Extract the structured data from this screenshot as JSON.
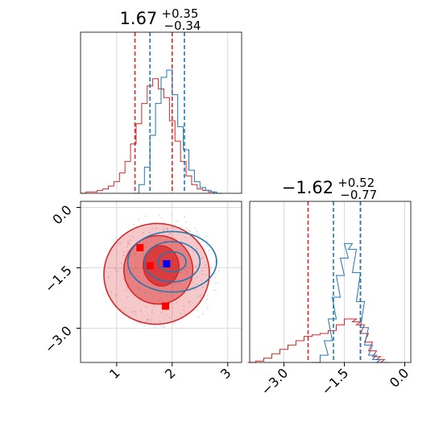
{
  "chart_data": [
    {
      "type": "histogram",
      "panel": "marginal-x",
      "title_main": "1.67",
      "title_sup": "+0.35",
      "title_sub": "−0.34",
      "xlim": [
        0.35,
        3.25
      ],
      "gridlines_x": [
        1,
        2,
        3
      ],
      "series": [
        {
          "color": "#d62728",
          "quantile_lines": [
            1.33,
            2.0
          ],
          "bins": [
            [
              0.4,
              0.0
            ],
            [
              0.5,
              0.01
            ],
            [
              0.6,
              0.01
            ],
            [
              0.7,
              0.02
            ],
            [
              0.8,
              0.03
            ],
            [
              0.9,
              0.05
            ],
            [
              1.0,
              0.08
            ],
            [
              1.1,
              0.14
            ],
            [
              1.2,
              0.22
            ],
            [
              1.3,
              0.34
            ],
            [
              1.4,
              0.48
            ],
            [
              1.5,
              0.62
            ],
            [
              1.6,
              0.74
            ],
            [
              1.7,
              0.79
            ],
            [
              1.8,
              0.72
            ],
            [
              1.9,
              0.66
            ],
            [
              2.0,
              0.5
            ],
            [
              2.1,
              0.36
            ],
            [
              2.2,
              0.22
            ],
            [
              2.3,
              0.12
            ],
            [
              2.4,
              0.06
            ],
            [
              2.5,
              0.03
            ],
            [
              2.6,
              0.02
            ],
            [
              2.7,
              0.01
            ],
            [
              2.8,
              0.0
            ]
          ]
        },
        {
          "color": "#1f77b4",
          "quantile_lines": [
            1.6,
            2.22
          ],
          "bins": [
            [
              1.35,
              0.0
            ],
            [
              1.45,
              0.06
            ],
            [
              1.55,
              0.18
            ],
            [
              1.65,
              0.4
            ],
            [
              1.75,
              0.62
            ],
            [
              1.85,
              0.8
            ],
            [
              1.95,
              0.85
            ],
            [
              2.05,
              0.68
            ],
            [
              2.15,
              0.46
            ],
            [
              2.25,
              0.3
            ],
            [
              2.35,
              0.16
            ],
            [
              2.45,
              0.08
            ],
            [
              2.55,
              0.04
            ],
            [
              2.65,
              0.02
            ],
            [
              2.75,
              0.01
            ],
            [
              2.85,
              0.0
            ]
          ]
        }
      ]
    },
    {
      "type": "contour",
      "panel": "joint",
      "xlim": [
        0.35,
        3.25
      ],
      "ylim": [
        -3.85,
        0.15
      ],
      "gridlines_x": [
        1,
        2,
        3
      ],
      "gridlines_y": [
        0.0,
        -1.5,
        -3.0
      ],
      "xticks": [
        "1",
        "2",
        "3"
      ],
      "yticks": [
        "0.0",
        "−1.5",
        "−3.0"
      ],
      "red_levels": [
        {
          "cx": 1.72,
          "cy": -1.65,
          "rx": 0.95,
          "ry": 1.25,
          "opacity": 0.25
        },
        {
          "cx": 1.75,
          "cy": -1.55,
          "rx": 0.62,
          "ry": 0.85,
          "opacity": 0.45
        },
        {
          "cx": 1.8,
          "cy": -1.45,
          "rx": 0.32,
          "ry": 0.5,
          "opacity": 0.75
        }
      ],
      "blue_levels": [
        {
          "cx": 2.0,
          "cy": -1.35,
          "rx": 0.8,
          "ry": 0.75
        },
        {
          "cx": 2.0,
          "cy": -1.35,
          "rx": 0.5,
          "ry": 0.5
        },
        {
          "cx": 2.0,
          "cy": -1.35,
          "rx": 0.25,
          "ry": 0.25
        }
      ],
      "markers": [
        {
          "x": 1.42,
          "y": -1.0,
          "color": "#ff0000"
        },
        {
          "x": 1.6,
          "y": -1.45,
          "color": "#ff0000"
        },
        {
          "x": 1.88,
          "y": -2.45,
          "color": "#ff0000"
        },
        {
          "x": 1.9,
          "y": -1.4,
          "color": "#0000ff"
        }
      ]
    },
    {
      "type": "histogram",
      "panel": "marginal-y",
      "title_main": "−1.62",
      "title_sup": "+0.52",
      "title_sub": "−0.77",
      "xlim": [
        -3.85,
        0.15
      ],
      "gridlines_x": [
        -3.0,
        -1.5,
        0.0
      ],
      "xticks": [
        "−3.0",
        "−1.5",
        "0.0"
      ],
      "series": [
        {
          "color": "#d62728",
          "quantile_lines": [
            -2.4,
            -1.1
          ],
          "bins": [
            [
              -3.8,
              0.0
            ],
            [
              -3.6,
              0.01
            ],
            [
              -3.4,
              0.03
            ],
            [
              -3.2,
              0.06
            ],
            [
              -3.0,
              0.09
            ],
            [
              -2.8,
              0.12
            ],
            [
              -2.6,
              0.15
            ],
            [
              -2.4,
              0.18
            ],
            [
              -2.2,
              0.19
            ],
            [
              -2.0,
              0.2
            ],
            [
              -1.8,
              0.22
            ],
            [
              -1.6,
              0.26
            ],
            [
              -1.4,
              0.3
            ],
            [
              -1.3,
              0.3
            ],
            [
              -1.2,
              0.28
            ],
            [
              -1.1,
              0.26
            ],
            [
              -1.0,
              0.2
            ],
            [
              -0.9,
              0.14
            ],
            [
              -0.8,
              0.08
            ],
            [
              -0.7,
              0.04
            ],
            [
              -0.6,
              0.02
            ],
            [
              -0.5,
              0.0
            ]
          ]
        },
        {
          "color": "#1f77b4",
          "quantile_lines": [
            -1.77,
            -1.1
          ],
          "bins": [
            [
              -2.2,
              0.0
            ],
            [
              -2.0,
              0.05
            ],
            [
              -1.9,
              0.15
            ],
            [
              -1.8,
              0.3
            ],
            [
              -1.7,
              0.45
            ],
            [
              -1.6,
              0.6
            ],
            [
              -1.5,
              0.72
            ],
            [
              -1.4,
              0.82
            ],
            [
              -1.3,
              0.78
            ],
            [
              -1.2,
              0.62
            ],
            [
              -1.1,
              0.42
            ],
            [
              -1.0,
              0.24
            ],
            [
              -0.9,
              0.12
            ],
            [
              -0.8,
              0.05
            ],
            [
              -0.7,
              0.02
            ],
            [
              -0.6,
              0.0
            ]
          ]
        }
      ]
    }
  ]
}
